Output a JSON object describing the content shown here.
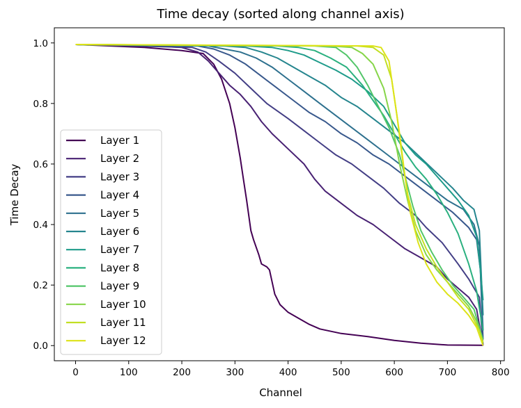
{
  "chart_data": {
    "type": "line",
    "title": "Time decay (sorted along channel axis)",
    "xlabel": "Channel",
    "ylabel": "Time Decay",
    "xlim": [
      -40,
      807
    ],
    "ylim": [
      -0.05,
      1.05
    ],
    "xticks": [
      0,
      100,
      200,
      300,
      400,
      500,
      600,
      700,
      800
    ],
    "yticks": [
      0.0,
      0.2,
      0.4,
      0.6,
      0.8,
      1.0
    ],
    "xtick_labels": [
      "0",
      "100",
      "200",
      "300",
      "400",
      "500",
      "600",
      "700",
      "800"
    ],
    "ytick_labels": [
      "0.0",
      "0.2",
      "0.4",
      "0.6",
      "0.8",
      "1.0"
    ],
    "grid": false,
    "legend_position": "lower-left",
    "series": [
      {
        "name": "Layer 1",
        "color": "#440154",
        "points": [
          [
            0,
            0.995
          ],
          [
            130,
            0.985
          ],
          [
            200,
            0.975
          ],
          [
            240,
            0.965
          ],
          [
            260,
            0.93
          ],
          [
            275,
            0.88
          ],
          [
            290,
            0.8
          ],
          [
            300,
            0.72
          ],
          [
            310,
            0.62
          ],
          [
            315,
            0.56
          ],
          [
            322,
            0.48
          ],
          [
            330,
            0.38
          ],
          [
            335,
            0.35
          ],
          [
            345,
            0.3
          ],
          [
            350,
            0.27
          ],
          [
            360,
            0.26
          ],
          [
            365,
            0.25
          ],
          [
            370,
            0.21
          ],
          [
            375,
            0.17
          ],
          [
            385,
            0.135
          ],
          [
            400,
            0.11
          ],
          [
            420,
            0.09
          ],
          [
            440,
            0.07
          ],
          [
            460,
            0.055
          ],
          [
            500,
            0.04
          ],
          [
            550,
            0.03
          ],
          [
            600,
            0.017
          ],
          [
            650,
            0.008
          ],
          [
            700,
            0.002
          ],
          [
            767,
            0.001
          ]
        ]
      },
      {
        "name": "Layer 2",
        "color": "#482173",
        "points": [
          [
            0,
            0.995
          ],
          [
            150,
            0.99
          ],
          [
            200,
            0.985
          ],
          [
            230,
            0.97
          ],
          [
            250,
            0.94
          ],
          [
            270,
            0.9
          ],
          [
            290,
            0.86
          ],
          [
            310,
            0.83
          ],
          [
            330,
            0.79
          ],
          [
            350,
            0.74
          ],
          [
            370,
            0.7
          ],
          [
            400,
            0.65
          ],
          [
            430,
            0.6
          ],
          [
            450,
            0.55
          ],
          [
            470,
            0.51
          ],
          [
            500,
            0.47
          ],
          [
            530,
            0.43
          ],
          [
            560,
            0.4
          ],
          [
            590,
            0.36
          ],
          [
            620,
            0.32
          ],
          [
            650,
            0.29
          ],
          [
            680,
            0.26
          ],
          [
            700,
            0.22
          ],
          [
            720,
            0.19
          ],
          [
            740,
            0.16
          ],
          [
            755,
            0.12
          ],
          [
            767,
            0.0
          ]
        ]
      },
      {
        "name": "Layer 3",
        "color": "#433e85",
        "points": [
          [
            0,
            0.995
          ],
          [
            220,
            0.985
          ],
          [
            245,
            0.97
          ],
          [
            270,
            0.94
          ],
          [
            300,
            0.9
          ],
          [
            330,
            0.85
          ],
          [
            360,
            0.8
          ],
          [
            400,
            0.75
          ],
          [
            430,
            0.71
          ],
          [
            460,
            0.67
          ],
          [
            490,
            0.63
          ],
          [
            520,
            0.6
          ],
          [
            550,
            0.56
          ],
          [
            580,
            0.52
          ],
          [
            610,
            0.47
          ],
          [
            640,
            0.43
          ],
          [
            660,
            0.39
          ],
          [
            690,
            0.34
          ],
          [
            720,
            0.27
          ],
          [
            740,
            0.22
          ],
          [
            760,
            0.16
          ],
          [
            767,
            0.0
          ]
        ]
      },
      {
        "name": "Layer 4",
        "color": "#38588c",
        "points": [
          [
            0,
            0.995
          ],
          [
            230,
            0.99
          ],
          [
            260,
            0.98
          ],
          [
            290,
            0.96
          ],
          [
            320,
            0.93
          ],
          [
            350,
            0.89
          ],
          [
            380,
            0.85
          ],
          [
            410,
            0.81
          ],
          [
            440,
            0.77
          ],
          [
            470,
            0.74
          ],
          [
            500,
            0.7
          ],
          [
            530,
            0.67
          ],
          [
            560,
            0.63
          ],
          [
            590,
            0.6
          ],
          [
            620,
            0.56
          ],
          [
            650,
            0.52
          ],
          [
            680,
            0.48
          ],
          [
            710,
            0.44
          ],
          [
            740,
            0.39
          ],
          [
            755,
            0.35
          ],
          [
            762,
            0.25
          ],
          [
            767,
            0.02
          ]
        ]
      },
      {
        "name": "Layer 5",
        "color": "#2d708e",
        "points": [
          [
            0,
            0.995
          ],
          [
            250,
            0.99
          ],
          [
            280,
            0.98
          ],
          [
            310,
            0.97
          ],
          [
            340,
            0.95
          ],
          [
            370,
            0.92
          ],
          [
            400,
            0.88
          ],
          [
            430,
            0.84
          ],
          [
            460,
            0.8
          ],
          [
            490,
            0.76
          ],
          [
            520,
            0.72
          ],
          [
            550,
            0.68
          ],
          [
            580,
            0.64
          ],
          [
            610,
            0.6
          ],
          [
            640,
            0.56
          ],
          [
            670,
            0.52
          ],
          [
            700,
            0.48
          ],
          [
            730,
            0.45
          ],
          [
            750,
            0.4
          ],
          [
            760,
            0.33
          ],
          [
            767,
            0.05
          ]
        ]
      },
      {
        "name": "Layer 6",
        "color": "#25858e",
        "points": [
          [
            0,
            0.995
          ],
          [
            280,
            0.99
          ],
          [
            320,
            0.985
          ],
          [
            350,
            0.97
          ],
          [
            380,
            0.95
          ],
          [
            410,
            0.92
          ],
          [
            440,
            0.89
          ],
          [
            470,
            0.86
          ],
          [
            500,
            0.82
          ],
          [
            530,
            0.79
          ],
          [
            560,
            0.75
          ],
          [
            590,
            0.71
          ],
          [
            620,
            0.67
          ],
          [
            650,
            0.62
          ],
          [
            680,
            0.57
          ],
          [
            710,
            0.52
          ],
          [
            730,
            0.48
          ],
          [
            750,
            0.45
          ],
          [
            760,
            0.38
          ],
          [
            767,
            0.1
          ]
        ]
      },
      {
        "name": "Layer 7",
        "color": "#1e9b8a",
        "points": [
          [
            0,
            0.995
          ],
          [
            320,
            0.99
          ],
          [
            370,
            0.985
          ],
          [
            400,
            0.975
          ],
          [
            430,
            0.96
          ],
          [
            460,
            0.935
          ],
          [
            490,
            0.91
          ],
          [
            520,
            0.88
          ],
          [
            550,
            0.84
          ],
          [
            580,
            0.79
          ],
          [
            600,
            0.73
          ],
          [
            620,
            0.67
          ],
          [
            640,
            0.63
          ],
          [
            660,
            0.6
          ],
          [
            680,
            0.56
          ],
          [
            700,
            0.52
          ],
          [
            720,
            0.48
          ],
          [
            740,
            0.43
          ],
          [
            755,
            0.36
          ],
          [
            762,
            0.25
          ],
          [
            767,
            0.15
          ]
        ]
      },
      {
        "name": "Layer 8",
        "color": "#2ab07f",
        "points": [
          [
            0,
            0.995
          ],
          [
            380,
            0.99
          ],
          [
            420,
            0.985
          ],
          [
            450,
            0.975
          ],
          [
            480,
            0.95
          ],
          [
            510,
            0.92
          ],
          [
            540,
            0.86
          ],
          [
            560,
            0.81
          ],
          [
            580,
            0.76
          ],
          [
            600,
            0.7
          ],
          [
            620,
            0.64
          ],
          [
            640,
            0.59
          ],
          [
            660,
            0.55
          ],
          [
            680,
            0.5
          ],
          [
            700,
            0.44
          ],
          [
            720,
            0.37
          ],
          [
            740,
            0.27
          ],
          [
            755,
            0.18
          ],
          [
            767,
            0.05
          ]
        ]
      },
      {
        "name": "Layer 9",
        "color": "#52c569",
        "points": [
          [
            0,
            0.995
          ],
          [
            450,
            0.99
          ],
          [
            490,
            0.985
          ],
          [
            510,
            0.96
          ],
          [
            530,
            0.92
          ],
          [
            550,
            0.86
          ],
          [
            570,
            0.79
          ],
          [
            590,
            0.72
          ],
          [
            610,
            0.63
          ],
          [
            620,
            0.56
          ],
          [
            635,
            0.46
          ],
          [
            650,
            0.38
          ],
          [
            670,
            0.31
          ],
          [
            690,
            0.25
          ],
          [
            710,
            0.2
          ],
          [
            730,
            0.16
          ],
          [
            750,
            0.12
          ],
          [
            767,
            0.02
          ]
        ]
      },
      {
        "name": "Layer 10",
        "color": "#86d549",
        "points": [
          [
            0,
            0.995
          ],
          [
            480,
            0.99
          ],
          [
            520,
            0.985
          ],
          [
            540,
            0.965
          ],
          [
            560,
            0.93
          ],
          [
            580,
            0.85
          ],
          [
            595,
            0.74
          ],
          [
            610,
            0.6
          ],
          [
            625,
            0.48
          ],
          [
            640,
            0.38
          ],
          [
            660,
            0.3
          ],
          [
            680,
            0.25
          ],
          [
            700,
            0.21
          ],
          [
            720,
            0.17
          ],
          [
            740,
            0.13
          ],
          [
            755,
            0.08
          ],
          [
            767,
            0.01
          ]
        ]
      },
      {
        "name": "Layer 11",
        "color": "#c2df23",
        "points": [
          [
            0,
            0.995
          ],
          [
            530,
            0.99
          ],
          [
            560,
            0.985
          ],
          [
            580,
            0.96
          ],
          [
            595,
            0.88
          ],
          [
            605,
            0.76
          ],
          [
            615,
            0.62
          ],
          [
            625,
            0.5
          ],
          [
            640,
            0.4
          ],
          [
            660,
            0.32
          ],
          [
            680,
            0.26
          ],
          [
            700,
            0.21
          ],
          [
            720,
            0.16
          ],
          [
            740,
            0.12
          ],
          [
            760,
            0.05
          ],
          [
            767,
            0.01
          ]
        ]
      },
      {
        "name": "Layer 12",
        "color": "#dde318",
        "points": [
          [
            0,
            0.995
          ],
          [
            560,
            0.99
          ],
          [
            575,
            0.985
          ],
          [
            590,
            0.94
          ],
          [
            600,
            0.82
          ],
          [
            610,
            0.7
          ],
          [
            620,
            0.56
          ],
          [
            630,
            0.44
          ],
          [
            645,
            0.34
          ],
          [
            660,
            0.27
          ],
          [
            680,
            0.21
          ],
          [
            700,
            0.17
          ],
          [
            720,
            0.14
          ],
          [
            740,
            0.1
          ],
          [
            755,
            0.06
          ],
          [
            767,
            0.0
          ]
        ]
      }
    ]
  }
}
